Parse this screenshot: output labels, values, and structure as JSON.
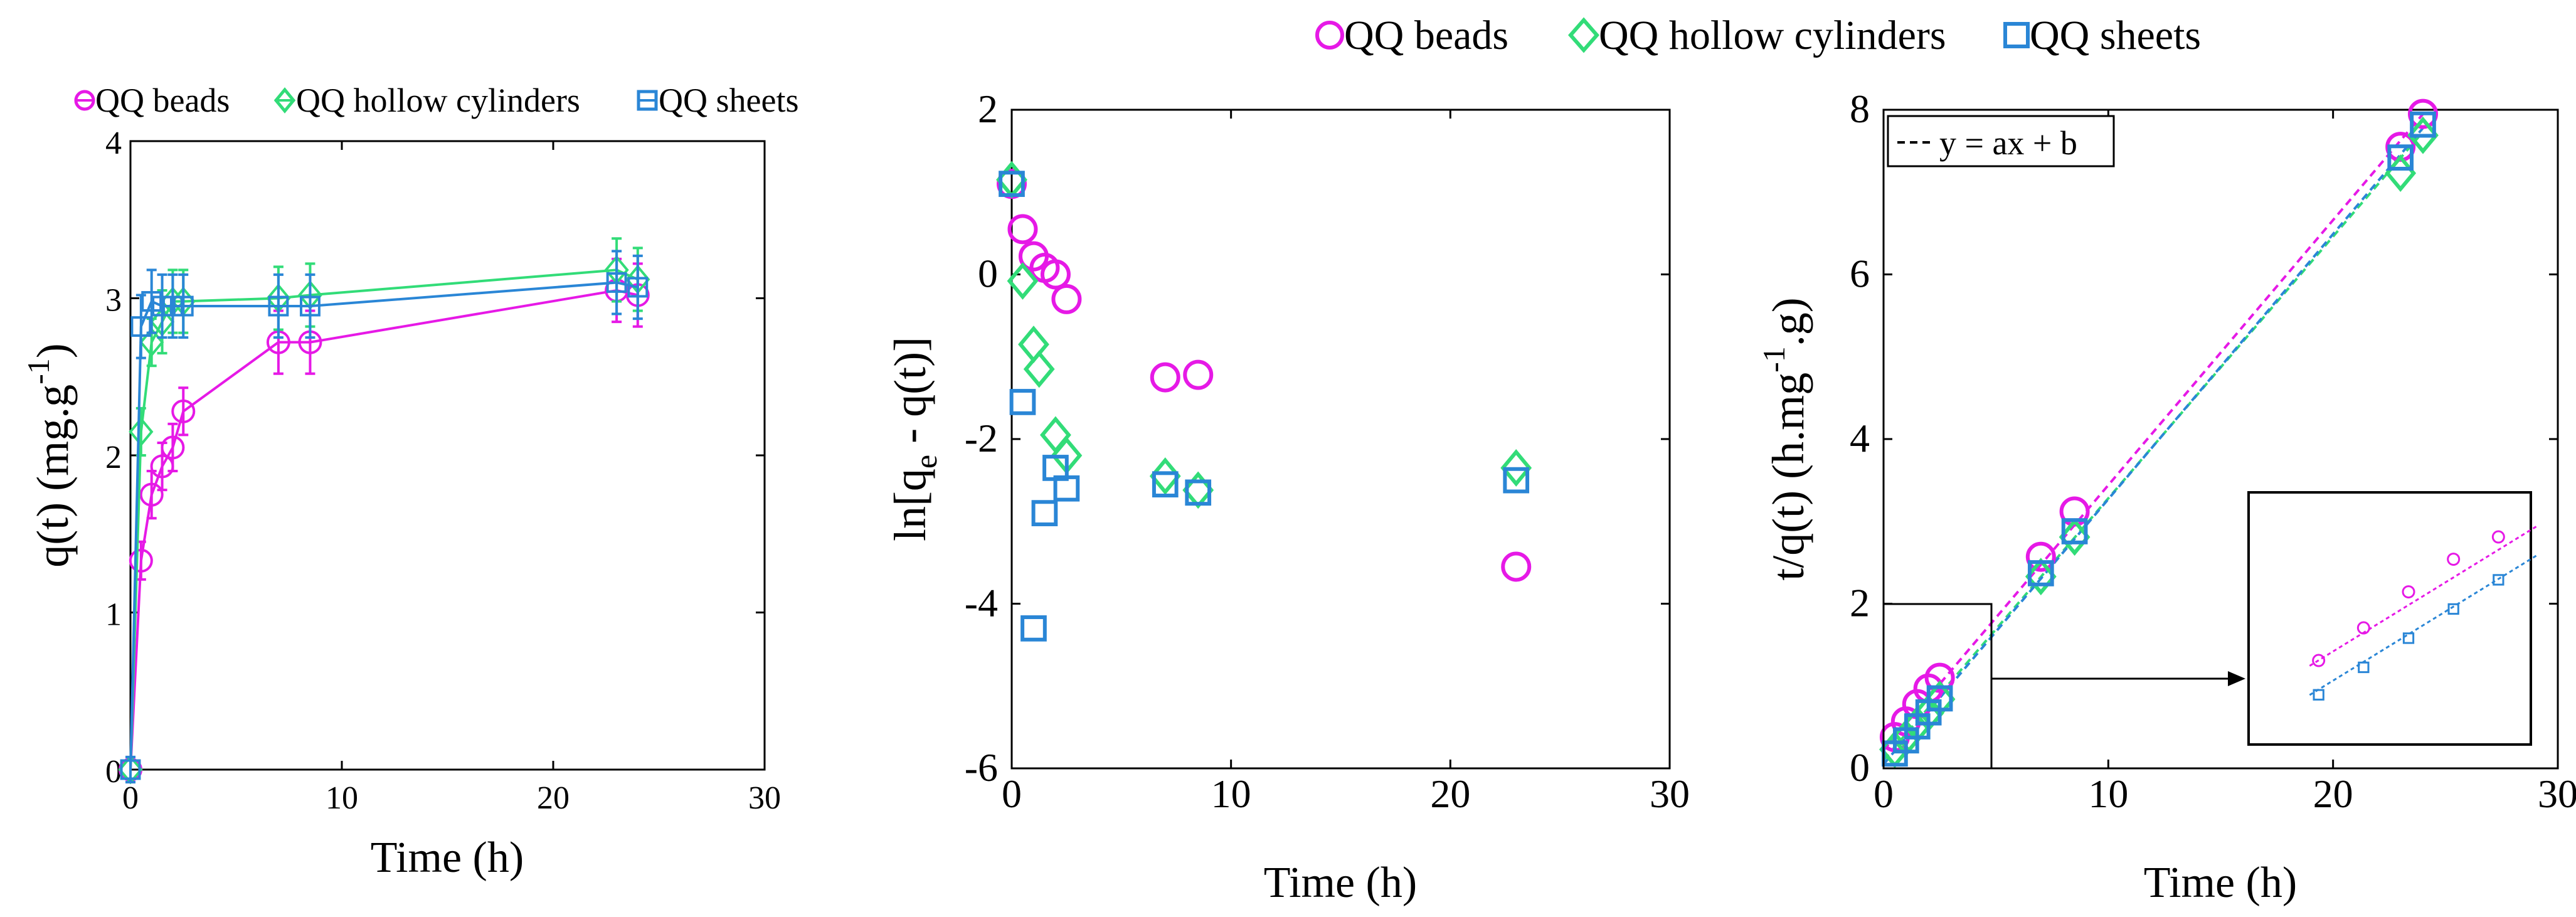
{
  "colors": {
    "beads": "#E619E6",
    "cylinders": "#32DC78",
    "sheets": "#2A86D6",
    "axis": "#000000"
  },
  "chart_data": [
    {
      "type": "line",
      "title": "",
      "xlabel": "Time (h)",
      "ylabel": "q(t) (mg.g",
      "ylabel_sup": "-1",
      "ylabel_close": ")",
      "xlim": [
        0,
        30
      ],
      "ylim": [
        0,
        4
      ],
      "xticks": [
        "0",
        "10",
        "20",
        "30"
      ],
      "yticks": [
        "0",
        "1",
        "2",
        "3",
        "4"
      ],
      "legend": [
        "QQ beads",
        "QQ hollow cylinders",
        "QQ sheets"
      ],
      "series": [
        {
          "name": "QQ beads",
          "marker": "circle",
          "x": [
            0,
            0.5,
            1,
            1.5,
            2,
            2.5,
            7,
            8.5,
            23,
            24
          ],
          "y": [
            0,
            1.33,
            1.75,
            1.93,
            2.05,
            2.28,
            2.72,
            2.72,
            3.05,
            3.02
          ],
          "err": [
            0.08,
            0.12,
            0.15,
            0.15,
            0.15,
            0.15,
            0.2,
            0.2,
            0.2,
            0.2
          ]
        },
        {
          "name": "QQ hollow cylinders",
          "marker": "diamond",
          "x": [
            0,
            0.5,
            1,
            1.5,
            2,
            2.5,
            7,
            8.5,
            23,
            24
          ],
          "y": [
            0,
            2.15,
            2.72,
            2.85,
            2.98,
            2.98,
            3.0,
            3.02,
            3.18,
            3.12
          ],
          "err": [
            0.08,
            0.15,
            0.15,
            0.2,
            0.2,
            0.2,
            0.2,
            0.2,
            0.2,
            0.2
          ]
        },
        {
          "name": "QQ sheets",
          "marker": "square",
          "x": [
            0,
            0.5,
            1,
            1.5,
            2,
            2.5,
            7,
            8.5,
            23,
            24
          ],
          "y": [
            0,
            2.82,
            2.98,
            2.95,
            2.95,
            2.95,
            2.95,
            2.95,
            3.1,
            3.07
          ],
          "err": [
            0.08,
            0.2,
            0.2,
            0.2,
            0.2,
            0.2,
            0.2,
            0.2,
            0.2,
            0.2
          ]
        }
      ]
    },
    {
      "type": "scatter",
      "title": "",
      "xlabel": "Time (h)",
      "ylabel": "ln[q",
      "ylabel_sub": "e",
      "ylabel_rest": " - q(t)]",
      "xlim": [
        0,
        30
      ],
      "ylim": [
        -6,
        2
      ],
      "xticks": [
        "0",
        "10",
        "20",
        "30"
      ],
      "yticks": [
        "2",
        "0",
        "-2",
        "-4",
        "-6"
      ],
      "series": [
        {
          "name": "QQ beads",
          "marker": "circle",
          "x": [
            0,
            0.5,
            1,
            1.5,
            2,
            2.5,
            7,
            8.5,
            23
          ],
          "y": [
            1.1,
            0.55,
            0.22,
            0.08,
            0.0,
            -0.3,
            -1.25,
            -1.22,
            -3.55
          ]
        },
        {
          "name": "QQ hollow cylinders",
          "marker": "diamond",
          "x": [
            0,
            0.5,
            1,
            1.25,
            2,
            2.5,
            7,
            8.5,
            23
          ],
          "y": [
            1.15,
            -0.08,
            -0.85,
            -1.15,
            -1.95,
            -2.2,
            -2.45,
            -2.62,
            -2.35
          ]
        },
        {
          "name": "QQ sheets",
          "marker": "square",
          "x": [
            0,
            0.5,
            1,
            1.5,
            2,
            2.5,
            7,
            8.5,
            23
          ],
          "y": [
            1.1,
            -1.55,
            -4.3,
            -2.9,
            -2.35,
            -2.6,
            -2.55,
            -2.65,
            -2.5
          ]
        }
      ]
    },
    {
      "type": "scatter",
      "title": "",
      "xlabel": "Time (h)",
      "ylabel": "t/q(t) (h.mg",
      "ylabel_sup": "-1",
      "ylabel_rest": ".g)",
      "xlim": [
        0,
        30
      ],
      "ylim": [
        0,
        8
      ],
      "xticks": [
        "0",
        "10",
        "20",
        "30"
      ],
      "yticks": [
        "0",
        "2",
        "4",
        "6",
        "8"
      ],
      "annotation": "y = ax + b",
      "series": [
        {
          "name": "QQ beads",
          "marker": "circle",
          "x": [
            0.5,
            1,
            1.5,
            2,
            2.5,
            7,
            8.5,
            23,
            24
          ],
          "y": [
            0.38,
            0.57,
            0.78,
            0.97,
            1.1,
            2.57,
            3.12,
            7.55,
            7.95
          ],
          "fit": [
            0.22,
            0.322
          ]
        },
        {
          "name": "QQ hollow cylinders",
          "marker": "diamond",
          "x": [
            0.5,
            1,
            1.5,
            2,
            2.5,
            7,
            8.5,
            23,
            24
          ],
          "y": [
            0.23,
            0.37,
            0.53,
            0.67,
            0.84,
            2.33,
            2.81,
            7.23,
            7.69
          ],
          "fit": [
            0.1,
            0.318
          ]
        },
        {
          "name": "QQ sheets",
          "marker": "square",
          "x": [
            0.5,
            1,
            1.5,
            2,
            2.5,
            7,
            8.5,
            23,
            24
          ],
          "y": [
            0.18,
            0.34,
            0.51,
            0.68,
            0.85,
            2.37,
            2.88,
            7.42,
            7.82
          ],
          "fit": [
            0.05,
            0.322
          ]
        }
      ]
    }
  ],
  "legend_top": [
    "QQ beads",
    "QQ hollow cylinders",
    "QQ sheets"
  ]
}
